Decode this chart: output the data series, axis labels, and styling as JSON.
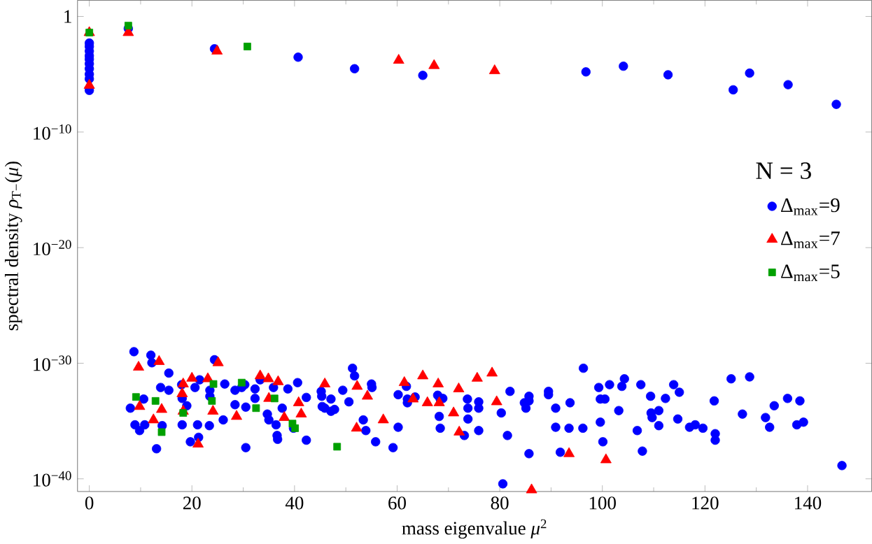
{
  "chart_data": {
    "type": "scatter",
    "xlabel": "mass eigenvalue *μ*$^{2}$",
    "ylabel": "spectral density *ρ*$_{T−}$(*μ*)",
    "legend_title": "N = 3",
    "legend": "right",
    "log": "y",
    "xlim": [
      -2.3,
      152.5
    ],
    "ylim": [
      8e-42,
      25
    ],
    "xticks": [
      0,
      20,
      40,
      60,
      80,
      100,
      120,
      140
    ],
    "yticks": [
      1,
      {
        "value": 1e-10,
        "label": "10$^{−10}$"
      },
      {
        "value": 1e-20,
        "label": "10$^{−20}$"
      },
      {
        "value": 1e-30,
        "label": "10$^{−30}$"
      },
      {
        "value": 1e-40,
        "label": "10$^{−40}$"
      }
    ],
    "series": [
      {
        "name": "Δ$_{max}$=9",
        "color": "#0000ff",
        "marker": "circle",
        "x": [
          0,
          0,
          0,
          0,
          0,
          0,
          0,
          0,
          0,
          0,
          7.6,
          24.4,
          40.7,
          51.7,
          65.0,
          96.8,
          104.1,
          112.8,
          125.5,
          128.7,
          136.2,
          145.6,
          8.7,
          8.0,
          8.9,
          9.8,
          10.6,
          10.8,
          12.0,
          12.2,
          13.1,
          13.9,
          14.2,
          15.5,
          15.5,
          18.0,
          18.1,
          18.1,
          19.0,
          19.7,
          20.6,
          21.1,
          21.5,
          21.3,
          23.4,
          23.5,
          23.5,
          24.4,
          26.1,
          26.4,
          28.4,
          28.4,
          29.7,
          30.3,
          30.5,
          30.5,
          32.3,
          32.3,
          33.3,
          34.7,
          35.0,
          35.9,
          36.4,
          36.6,
          36.7,
          37.6,
          38.7,
          39.8,
          40.6,
          42.3,
          42.3,
          45.2,
          45.3,
          45.4,
          45.9,
          47.1,
          47.1,
          47.8,
          49.4,
          50.6,
          51.3,
          51.7,
          53.4,
          53.9,
          55.0,
          55.1,
          55.8,
          59.2,
          60.2,
          60.2,
          61.8,
          62.0,
          62.0,
          63.5,
          67.9,
          68.4,
          68.2,
          68.9,
          68.4,
          73.1,
          73.7,
          73.8,
          73.8,
          75.9,
          75.9,
          75.9,
          96.3,
          99.3,
          101.4,
          103.8,
          104.3,
          107.5,
          109.4,
          112.3,
          113.9,
          115.0,
          114.7,
          121.8,
          125.1,
          128.7,
          127.3,
          131.8,
          133.5,
          136.1,
          138.5,
          132.6,
          137.9,
          139.2,
          89.5,
          89.5,
          90.9,
          93.7,
          99.6,
          100.5,
          103.2,
          109.5,
          109.7,
          111.0,
          111.0,
          117.0,
          118.1,
          119.6,
          122.0,
          122.0,
          106.8,
          107.8,
          100.1,
          99.6,
          96.2,
          93.5,
          90.9,
          91.8,
          85.7,
          84.8,
          85.1,
          85.7,
          85.7,
          82.0,
          81.5,
          80.3,
          80.6,
          146.7
        ],
        "values": [
          0.005,
          0.0025,
          0.001,
          0.0004,
          0.0002,
          8e-05,
          3e-05,
          1e-05,
          4e-06,
          4e-07,
          0.09,
          0.0016,
          0.0003,
          3e-05,
          8e-06,
          1.6e-05,
          5e-05,
          9e-06,
          4.5e-07,
          1.25e-05,
          1.25e-06,
          2.5e-08,
          1e-29,
          1.3e-34,
          4.7e-36,
          1.5e-36,
          8e-34,
          4.7e-36,
          5e-30,
          1.1e-30,
          4e-38,
          8e-33,
          4e-36,
          1.4e-31,
          4.6e-33,
          1.4e-32,
          9e-34,
          4.7e-36,
          2.1e-34,
          1.6e-37,
          8e-33,
          4.7e-36,
          3.7e-32,
          3.9e-37,
          4e-36,
          4.6e-33,
          1.4e-33,
          2e-30,
          1.25e-35,
          1.6e-32,
          2.6e-34,
          4.6e-33,
          8e-33,
          1.4e-32,
          1.6e-34,
          5e-38,
          6e-33,
          9e-34,
          3.7e-32,
          4e-35,
          1.25e-35,
          8e-33,
          4.7e-36,
          5.6e-37,
          2.6e-37,
          1.3e-34,
          6e-33,
          2.4e-36,
          2.1e-32,
          1.1e-33,
          2.2e-37,
          3.7e-33,
          1.4e-33,
          1.8e-34,
          1.3e-34,
          8e-34,
          7e-35,
          1e-34,
          4.6e-33,
          4.6e-34,
          3.7e-31,
          8e-32,
          1.25e-35,
          1.5e-36,
          1.6e-32,
          8e-33,
          1.6e-37,
          5e-38,
          2.9e-36,
          1.9e-33,
          1e-32,
          8e-34,
          3.8e-34,
          1.2e-33,
          1.7e-33,
          8e-34,
          2.5e-35,
          9e-34,
          2.4e-36,
          5.6e-37,
          8e-34,
          1.3e-34,
          1.5e-35,
          4.6e-34,
          1.3e-34,
          1.5e-36,
          3.7e-31,
          8e-33,
          1.4e-32,
          1e-32,
          4.5e-32,
          1.4e-32,
          1.4e-33,
          9e-34,
          1.4e-32,
          3.1e-33,
          1.5e-35,
          5.5e-34,
          4.5e-32,
          6.6e-32,
          4e-35,
          2e-35,
          2.1e-34,
          9e-34,
          5.5e-34,
          2.9e-36,
          4.7e-36,
          8e-36,
          3.7e-33,
          1.9e-33,
          1.3e-34,
          3.8e-34,
          8e-34,
          8e-34,
          8e-35,
          5e-35,
          2e-35,
          8e-35,
          4e-36,
          2.9e-36,
          4.7e-36,
          2.4e-36,
          8e-37,
          2.2e-37,
          1.5e-36,
          2.5e-38,
          1.6e-37,
          8e-36,
          2.4e-36,
          2.4e-36,
          2.9e-36,
          2e-38,
          1.5e-38,
          3.8e-34,
          1.3e-34,
          5.5e-34,
          1.4e-33,
          3.7e-33,
          5.6e-37,
          5e-35,
          3.7e-41,
          1.4e-39
        ]
      },
      {
        "name": "Δ$_{max}$=7",
        "color": "#ff0000",
        "marker": "triangle",
        "x": [
          0,
          0,
          7.6,
          24.9,
          60.3,
          67.2,
          79.0,
          9.6,
          9.8,
          12.5,
          13.6,
          14.1,
          18.3,
          18.3,
          18.1,
          20.0,
          21.2,
          23.1,
          24.1,
          25.1,
          28.7,
          33.3,
          34.9,
          35.0,
          36.8,
          38.0,
          41.3,
          40.8,
          45.9,
          52.1,
          52.2,
          54.2,
          57.3,
          61.4,
          63.1,
          65.0,
          65.9,
          68.0,
          68.2,
          71.0,
          72.1,
          72.0,
          75.6,
          78.5,
          79.4,
          86.2,
          93.5,
          100.7
        ],
        "values": [
          0.04,
          1.1e-06,
          0.04,
          0.001,
          0.00016,
          5.6e-05,
          2e-05,
          4.5e-31,
          1.8e-34,
          1.25e-35,
          1.4e-30,
          1e-34,
          1.6e-32,
          7e-35,
          2.3e-33,
          5e-32,
          1e-37,
          4.5e-32,
          7e-35,
          1.1e-30,
          2.5e-35,
          8e-32,
          4.5e-32,
          9e-34,
          2.5e-32,
          2e-35,
          4e-35,
          3.8e-34,
          1.6e-32,
          2.4e-36,
          1e-32,
          1.4e-33,
          1.25e-35,
          2.1e-32,
          8e-34,
          8e-32,
          3.8e-34,
          1.6e-32,
          3.8e-34,
          5e-35,
          1.1e-36,
          6e-33,
          5e-32,
          1.4e-31,
          4.6e-34,
          1.1e-41,
          1.5e-38,
          4.4e-39
        ]
      },
      {
        "name": "Δ$_{max}$=5",
        "color": "#00a000",
        "marker": "square",
        "x": [
          0,
          7.6,
          30.8,
          9.1,
          12.9,
          14.1,
          18.3,
          24.2,
          23.9,
          29.7,
          32.5,
          36.1,
          39.6,
          40.1,
          48.3
        ],
        "values": [
          0.04,
          0.16,
          0.0025,
          1.2e-33,
          5.5e-34,
          1.1e-36,
          5e-35,
          1.6e-32,
          5.5e-34,
          2.1e-32,
          1.3e-34,
          9e-34,
          6e-36,
          2.4e-36,
          6e-38
        ]
      }
    ]
  }
}
